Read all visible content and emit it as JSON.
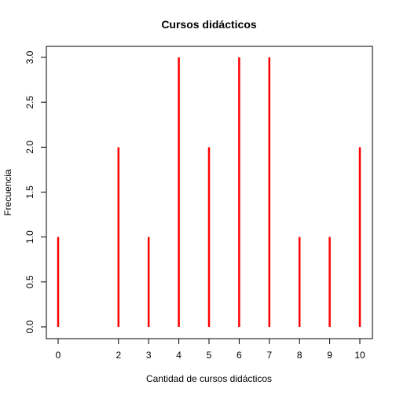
{
  "chart_data": {
    "type": "bar",
    "subtype": "histogram-spikes",
    "title": "Cursos didácticos",
    "xlabel": "Cantidad de cursos didácticos",
    "ylabel": "Frecuencia",
    "x": [
      0,
      2,
      3,
      4,
      5,
      6,
      7,
      8,
      9,
      10
    ],
    "values": [
      1,
      2,
      1,
      3,
      2,
      3,
      3,
      1,
      1,
      2
    ],
    "x_ticks": [
      "0",
      "2",
      "3",
      "4",
      "5",
      "6",
      "7",
      "8",
      "9",
      "10"
    ],
    "y_ticks": [
      "0.0",
      "0.5",
      "1.0",
      "1.5",
      "2.0",
      "2.5",
      "3.0"
    ],
    "xlim": [
      0,
      10
    ],
    "ylim": [
      0,
      3
    ],
    "bar_color": "#ff0000",
    "grid": false,
    "legend": "none"
  }
}
